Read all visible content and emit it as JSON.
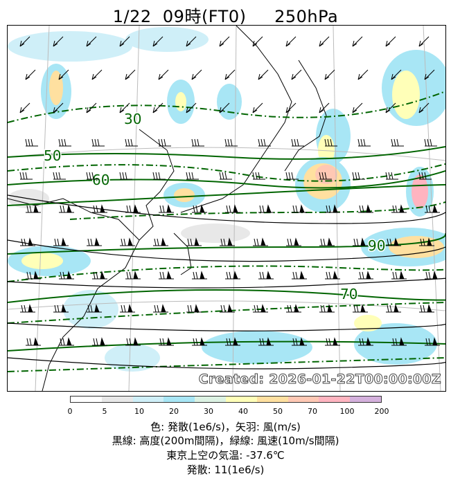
{
  "title": "1/22  09時(FT0)     250hPa",
  "map": {
    "created_stamp": "Created: 2026-01-22T00:00:00Z",
    "contour_labels": [
      "30",
      "50",
      "60",
      "90",
      "70"
    ],
    "jet_speed_contour_color": "#006400",
    "height_contour_color": "#000000",
    "land_outline_color": "#000000"
  },
  "colorbar": {
    "ticks": [
      "0",
      "5",
      "10",
      "20",
      "30",
      "40",
      "50",
      "70",
      "100",
      "200"
    ],
    "colors": [
      "#ffffff",
      "#e8e8e8",
      "#cfeff8",
      "#a8e6f5",
      "#dcf2e3",
      "#ffffb8",
      "#ffe0a0",
      "#ffc8b4",
      "#ffb4c0",
      "#d4b0dc"
    ]
  },
  "legend": {
    "line1": "色: 発散(1e6/s)，矢羽: 風(m/s)",
    "line2": "黒線: 高度(200m間隔)，緑線: 風速(10m/s間隔)",
    "line3": "東京上空の気温: -37.6℃",
    "line4": "発散: 11(1e6/s)"
  }
}
